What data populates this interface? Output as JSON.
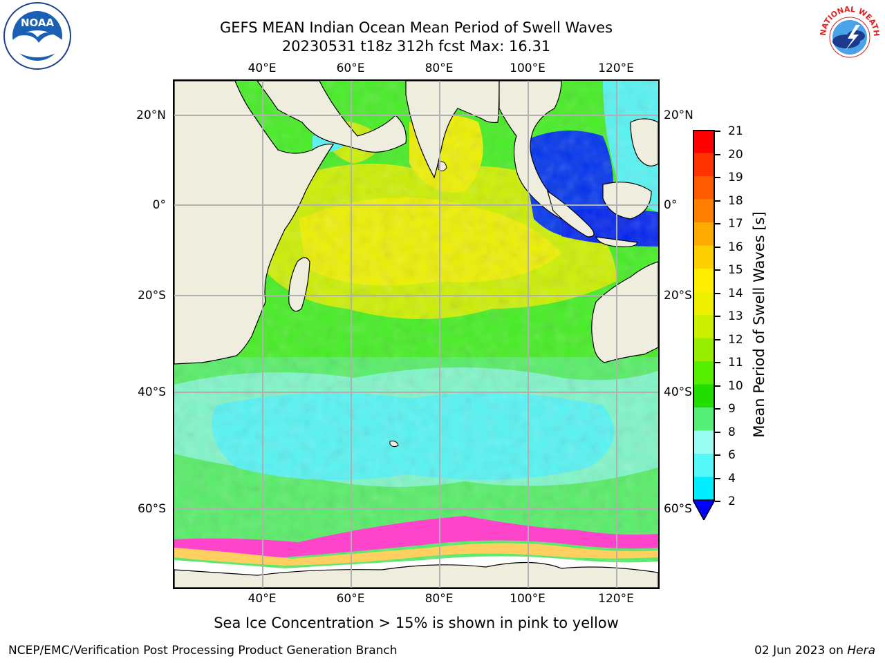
{
  "header": {
    "title_line1": "GEFS MEAN Indian Ocean Mean Period of Swell Waves",
    "title_line2": "20230531 t18z 312h fcst   Max: 16.31"
  },
  "logos": {
    "left": {
      "icon": "noaa-logo",
      "text": "NOAA"
    },
    "right": {
      "icon": "nws-logo",
      "text": "NATIONAL WEATHER SERVICE"
    }
  },
  "map": {
    "lon_ticks_top": [
      "40°E",
      "60°E",
      "80°E",
      "100°E",
      "120°E"
    ],
    "lon_ticks_bottom": [
      "40°E",
      "60°E",
      "80°E",
      "100°E",
      "120°E"
    ],
    "lat_ticks_left": [
      "20°N",
      "0°",
      "20°S",
      "40°S",
      "60°S"
    ],
    "lat_ticks_right": [
      "20°N",
      "0°",
      "20°S",
      "40°S",
      "60°S"
    ],
    "land_color": "#efedde",
    "grid_color": "#b0b0b0"
  },
  "colorbar": {
    "label": "Mean Period of Swell Waves [s]",
    "ticks": [
      "21",
      "20",
      "19",
      "18",
      "17",
      "16",
      "15",
      "14",
      "13",
      "12",
      "11",
      "10",
      "9",
      "8",
      "6",
      "4",
      "2"
    ],
    "colors": [
      "#ff0000",
      "#ff3300",
      "#ff5a00",
      "#ff8000",
      "#ffaa00",
      "#ffd000",
      "#ffee00",
      "#eef000",
      "#ccf000",
      "#99ee00",
      "#55ee00",
      "#22dd00",
      "#55ee77",
      "#99fcf0",
      "#55f8f8",
      "#00eeff",
      "#00aaff",
      "#0066ff",
      "#0000ff"
    ]
  },
  "notes": {
    "sea_ice": "Sea Ice Concentration > 15% is shown in pink to yellow"
  },
  "footer": {
    "left": "NCEP/EMC/Verification Post Processing Product Generation Branch",
    "right_date": "02 Jun 2023 on ",
    "right_machine": "Hera"
  }
}
